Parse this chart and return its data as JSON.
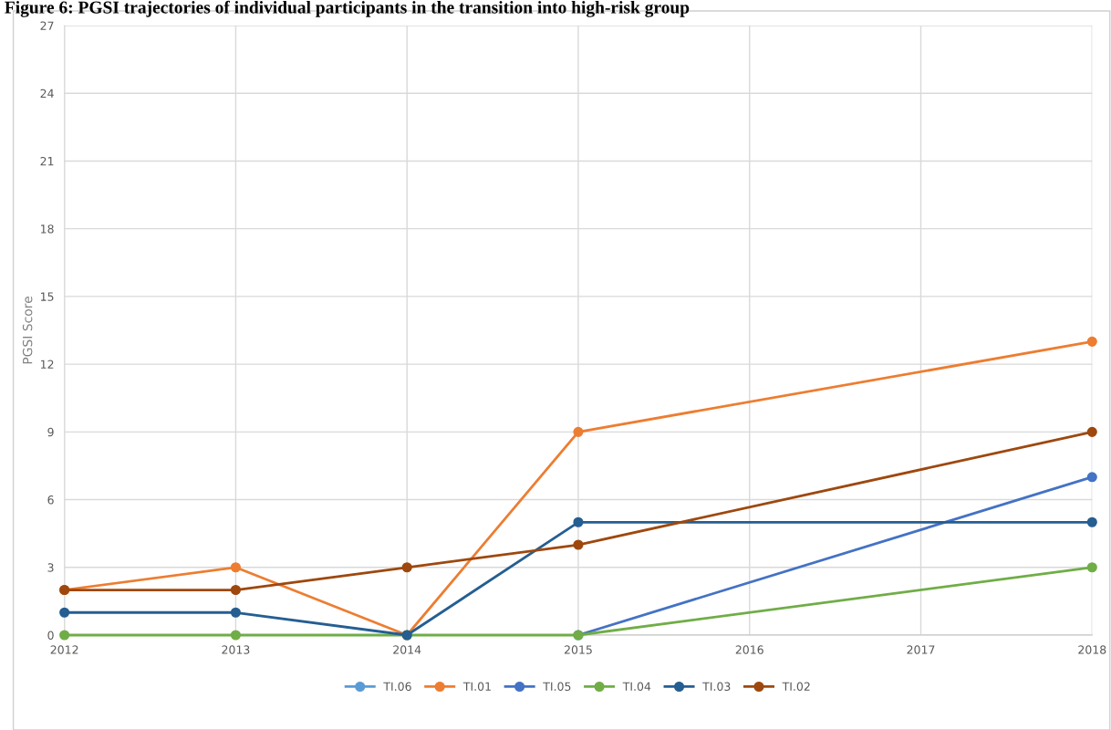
{
  "chart_data": {
    "type": "line",
    "title": "Figure 6: PGSI trajectories of individual participants in the transition into high-risk group",
    "ylabel": "PGSI Score",
    "x": [
      2012,
      2013,
      2014,
      2015,
      2018
    ],
    "series": [
      {
        "name": "TI.06",
        "color": "#5b9bd5",
        "values": [
          null,
          null,
          null,
          null,
          null
        ]
      },
      {
        "name": "TI.01",
        "color": "#ed7d31",
        "values": [
          2,
          3,
          0,
          9,
          13
        ]
      },
      {
        "name": "TI.05",
        "color": "#4472c4",
        "values": [
          null,
          null,
          null,
          0,
          7
        ]
      },
      {
        "name": "TI.04",
        "color": "#70ad47",
        "values": [
          0,
          0,
          0,
          0,
          3
        ]
      },
      {
        "name": "TI.03",
        "color": "#255e91",
        "values": [
          1,
          1,
          0,
          5,
          5
        ]
      },
      {
        "name": "TI.02",
        "color": "#9e480e",
        "values": [
          2,
          2,
          3,
          4,
          9
        ]
      }
    ],
    "xlim": [
      2012,
      2018
    ],
    "xticks": [
      2012,
      2013,
      2014,
      2015,
      2016,
      2017,
      2018
    ],
    "ylim": [
      0,
      27
    ],
    "yticks": [
      0,
      3,
      6,
      9,
      12,
      15,
      18,
      21,
      24,
      27
    ],
    "grid": true,
    "legend": "bottom",
    "marker": "circle",
    "line_style": "solid"
  }
}
